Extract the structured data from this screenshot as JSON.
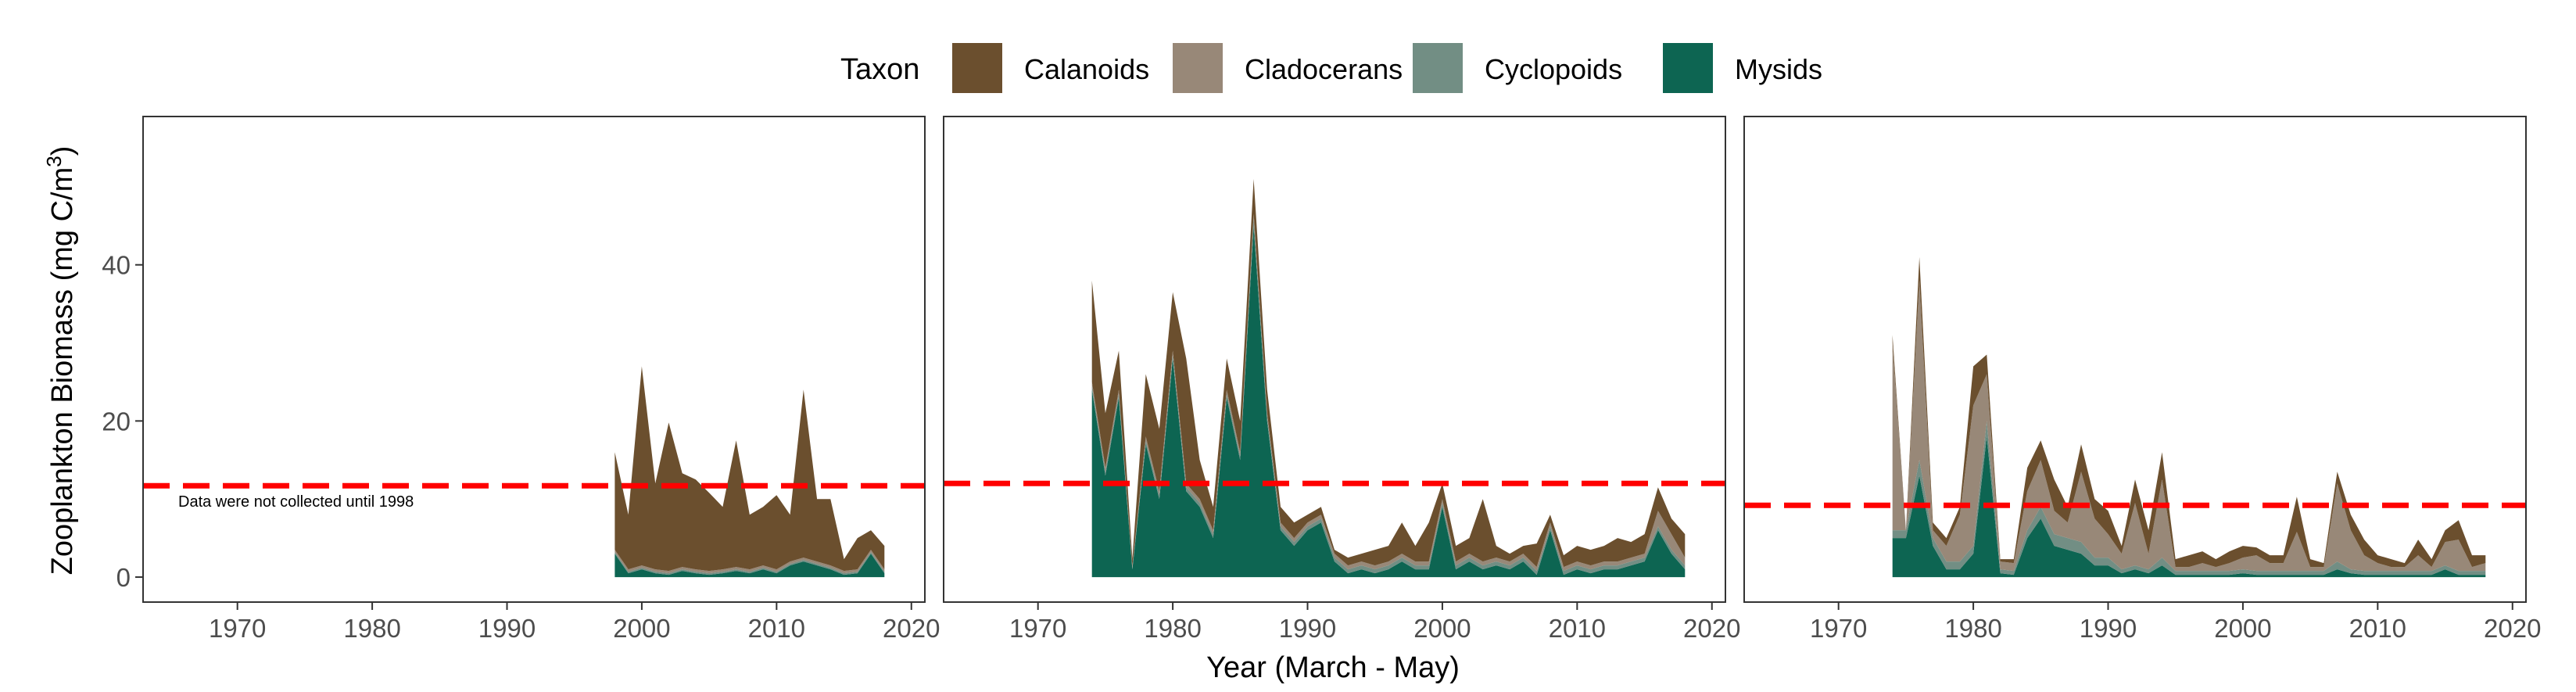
{
  "legend": {
    "title": "Taxon",
    "items": [
      {
        "label": "Calanoids",
        "color": "#6b4f2e"
      },
      {
        "label": "Cladocerans",
        "color": "#988878"
      },
      {
        "label": "Cyclopoids",
        "color": "#728e84"
      },
      {
        "label": "Mysids",
        "color": "#0d6552"
      }
    ]
  },
  "axes": {
    "ylabel_main": "Zooplankton Biomass (mg C/m",
    "ylabel_sup": "3",
    "ylabel_close": ")",
    "xlabel": "Year (March - May)"
  },
  "reference_color": "#ff0000",
  "chart_data": [
    {
      "type": "area",
      "panel": 1,
      "stacked": true,
      "xlim": [
        1963,
        2021
      ],
      "ylim": [
        -3.2,
        59.0
      ],
      "xticks": [
        "1970",
        "1980",
        "1990",
        "2000",
        "2010",
        "2020"
      ],
      "yticks": [
        "0",
        "20",
        "40"
      ],
      "reference_line": 11.7,
      "annotation": "Data were not collected until 1998",
      "x": [
        1998,
        1999,
        2000,
        2001,
        2002,
        2003,
        2004,
        2005,
        2006,
        2007,
        2008,
        2009,
        2010,
        2011,
        2012,
        2013,
        2014,
        2015,
        2016,
        2017,
        2018
      ],
      "series": [
        {
          "name": "Mysids",
          "values": [
            3,
            0.5,
            1,
            0.5,
            0.3,
            0.8,
            0.5,
            0.3,
            0.5,
            0.8,
            0.5,
            1,
            0.5,
            1.5,
            2,
            1.5,
            1,
            0.3,
            0.5,
            3,
            0.5
          ]
        },
        {
          "name": "Cyclopoids",
          "values": [
            0.2,
            0.2,
            0.2,
            0.2,
            0.2,
            0.2,
            0.2,
            0.2,
            0.2,
            0.2,
            0.2,
            0.2,
            0.2,
            0.2,
            0.2,
            0.2,
            0.2,
            0.2,
            0.2,
            0.2,
            0.2
          ]
        },
        {
          "name": "Cladocerans",
          "values": [
            0.3,
            0.3,
            0.3,
            0.3,
            0.3,
            0.3,
            0.3,
            0.3,
            0.3,
            0.3,
            0.3,
            0.3,
            0.3,
            0.3,
            0.3,
            0.3,
            0.3,
            0.3,
            0.3,
            0.3,
            0.3
          ]
        },
        {
          "name": "Calanoids",
          "values": [
            12.5,
            7,
            25.5,
            11,
            19,
            12,
            11.5,
            10,
            8,
            16.2,
            7,
            7.5,
            9.5,
            6,
            21.5,
            8,
            8.5,
            1.5,
            4,
            2.5,
            3
          ]
        }
      ]
    },
    {
      "type": "area",
      "panel": 2,
      "stacked": true,
      "xlim": [
        1963,
        2021
      ],
      "ylim": [
        -3.2,
        59.0
      ],
      "xticks": [
        "1970",
        "1980",
        "1990",
        "2000",
        "2010",
        "2020"
      ],
      "yticks": [],
      "reference_line": 12.0,
      "x": [
        1974,
        1975,
        1976,
        1977,
        1978,
        1979,
        1980,
        1981,
        1982,
        1983,
        1984,
        1985,
        1986,
        1987,
        1988,
        1989,
        1990,
        1991,
        1992,
        1993,
        1994,
        1995,
        1996,
        1997,
        1998,
        1999,
        2000,
        2001,
        2002,
        2003,
        2004,
        2005,
        2006,
        2007,
        2008,
        2009,
        2010,
        2011,
        2012,
        2013,
        2014,
        2015,
        2016,
        2017,
        2018
      ],
      "series": [
        {
          "name": "Mysids",
          "values": [
            24,
            13,
            23,
            1,
            17,
            10,
            28,
            11,
            9,
            5,
            23,
            15,
            45,
            20,
            6,
            4,
            6,
            7,
            2,
            0.5,
            1,
            0.5,
            1,
            2,
            1,
            1,
            9,
            1,
            2,
            1,
            1.5,
            1,
            2,
            0.3,
            6,
            0.3,
            1,
            0.5,
            1,
            1,
            1.5,
            2,
            6,
            3,
            1
          ]
        },
        {
          "name": "Cyclopoids",
          "values": [
            0.5,
            0.5,
            0.5,
            0.2,
            0.5,
            0.5,
            0.5,
            0.5,
            0.5,
            0.5,
            0.5,
            0.5,
            1,
            0.5,
            0.5,
            0.5,
            0.5,
            0.5,
            0.5,
            0.5,
            0.5,
            0.5,
            0.5,
            0.5,
            0.5,
            0.5,
            0.5,
            0.5,
            0.5,
            0.5,
            0.5,
            0.5,
            0.5,
            0.5,
            0.5,
            0.5,
            0.5,
            0.5,
            0.5,
            0.5,
            0.5,
            0.5,
            0.5,
            0.5,
            0.5
          ]
        },
        {
          "name": "Cladocerans",
          "values": [
            0.5,
            0.5,
            0.5,
            0.2,
            0.5,
            0.5,
            0.5,
            0.5,
            0.5,
            0.5,
            0.5,
            0.5,
            0.5,
            0.5,
            0.5,
            0.5,
            0.5,
            0.5,
            0.5,
            0.5,
            0.5,
            0.5,
            0.5,
            0.5,
            0.5,
            0.5,
            0.5,
            0.5,
            0.5,
            0.5,
            0.5,
            0.5,
            0.5,
            0.5,
            0.5,
            0.5,
            0.5,
            0.5,
            0.5,
            0.5,
            0.5,
            0.5,
            2,
            2,
            1
          ]
        },
        {
          "name": "Calanoids",
          "values": [
            13,
            7,
            5,
            1,
            8,
            8,
            7.5,
            16,
            5,
            3,
            4,
            4,
            4.5,
            3,
            2,
            2,
            1,
            1,
            0.5,
            1,
            1,
            2,
            2,
            4,
            2,
            5,
            2,
            2,
            2,
            8,
            1.5,
            1,
            1,
            3,
            1,
            1.5,
            2,
            2,
            2,
            3,
            2,
            2.5,
            3,
            2,
            3
          ]
        }
      ]
    },
    {
      "type": "area",
      "panel": 3,
      "stacked": true,
      "xlim": [
        1963,
        2021
      ],
      "ylim": [
        -3.2,
        59.0
      ],
      "xticks": [
        "1970",
        "1980",
        "1990",
        "2000",
        "2010",
        "2020"
      ],
      "yticks": [],
      "reference_line": 9.2,
      "x": [
        1974,
        1975,
        1976,
        1977,
        1978,
        1979,
        1980,
        1981,
        1982,
        1983,
        1984,
        1985,
        1986,
        1987,
        1988,
        1989,
        1990,
        1991,
        1992,
        1993,
        1994,
        1995,
        1996,
        1997,
        1998,
        1999,
        2000,
        2001,
        2002,
        2003,
        2004,
        2005,
        2006,
        2007,
        2008,
        2009,
        2010,
        2011,
        2012,
        2013,
        2014,
        2015,
        2016,
        2017,
        2018
      ],
      "series": [
        {
          "name": "Mysids",
          "values": [
            5,
            5,
            13,
            4,
            1,
            1,
            3,
            18,
            0.5,
            0.3,
            5,
            7.5,
            4,
            3.5,
            3,
            1.5,
            1.5,
            0.5,
            1,
            0.5,
            1.5,
            0.3,
            0.3,
            0.3,
            0.3,
            0.3,
            0.5,
            0.3,
            0.3,
            0.3,
            0.3,
            0.3,
            0.3,
            1,
            0.5,
            0.3,
            0.3,
            0.3,
            0.3,
            0.3,
            0.3,
            1,
            0.3,
            0.3,
            0.3
          ]
        },
        {
          "name": "Cyclopoids",
          "values": [
            1,
            1,
            2,
            1,
            1,
            1,
            1,
            2,
            0.5,
            0.5,
            1,
            1.5,
            1.5,
            1.5,
            1.5,
            1,
            1,
            0.5,
            0.5,
            0.5,
            1,
            0.5,
            0.5,
            0.5,
            0.5,
            0.5,
            0.5,
            0.5,
            0.5,
            0.5,
            0.5,
            0.5,
            0.5,
            1,
            0.5,
            0.5,
            0.5,
            0.5,
            0.5,
            0.5,
            0.5,
            0.5,
            0.5,
            0.5,
            0.5
          ]
        },
        {
          "name": "Cladocerans",
          "values": [
            24,
            0,
            23,
            1,
            2,
            6,
            18,
            6,
            1,
            1,
            5,
            6,
            3,
            2,
            9,
            5,
            3,
            2,
            8,
            2,
            10,
            0.5,
            0.5,
            1,
            0.5,
            1,
            1.5,
            2,
            1,
            1,
            5,
            0.5,
            0.5,
            10,
            5,
            2,
            1,
            0.5,
            0.5,
            2,
            0.5,
            3,
            4,
            0.5,
            1
          ]
        },
        {
          "name": "Calanoids",
          "values": [
            1,
            0,
            3,
            1,
            1,
            1,
            5,
            2.5,
            0.3,
            0.5,
            3,
            2.5,
            4,
            2,
            3.5,
            2.5,
            3,
            1,
            3,
            3,
            3.5,
            1,
            1.5,
            1.5,
            1,
            1.5,
            1.5,
            1,
            1,
            1,
            4.5,
            1,
            0.5,
            1.5,
            2,
            2,
            1,
            1,
            0.5,
            2,
            1,
            1.5,
            2.5,
            1.5,
            1
          ]
        }
      ]
    }
  ]
}
